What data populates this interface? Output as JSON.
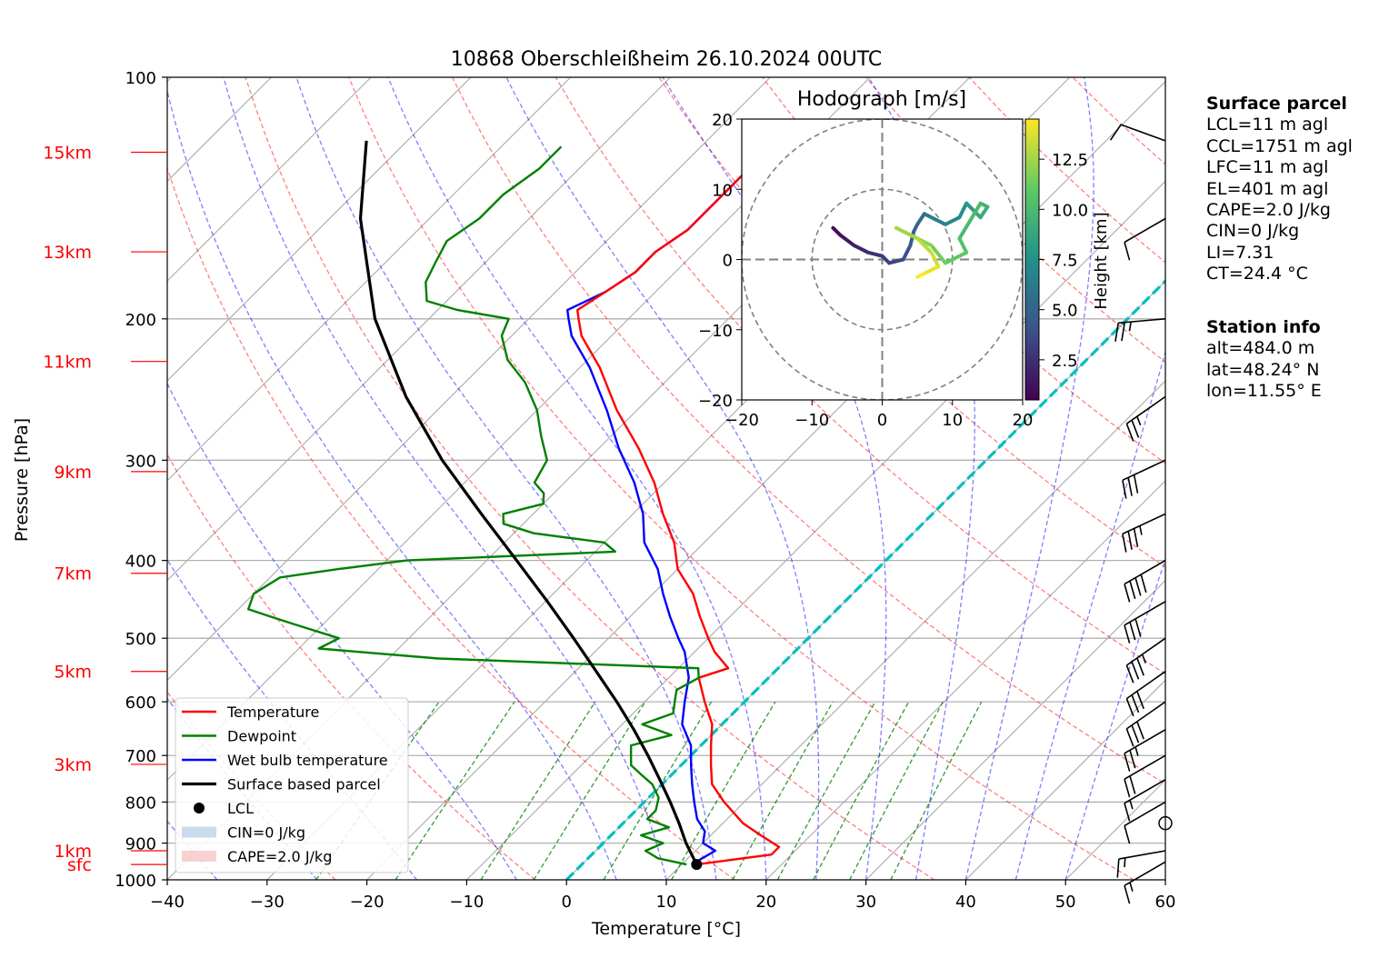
{
  "title": "10868 Oberschleißheim 26.10.2024 00UTC",
  "colors": {
    "temperature": "#ff0000",
    "dewpoint": "#008000",
    "wetbulb": "#0000ff",
    "parcel": "#000000",
    "isotherm_zero": "#00bfbf",
    "dry_adiabat": "#ff0000",
    "moist_adiabat": "#0000ff",
    "mixing_ratio": "#008000",
    "height_labels": "#ff0000"
  },
  "surface_panel": {
    "title": "Surface parcel",
    "lines": [
      "LCL=11 m agl",
      "CCL=1751 m agl",
      "LFC=11 m agl",
      "EL=401 m agl",
      "CAPE=2.0 J/kg",
      "CIN=0 J/kg",
      "LI=7.31",
      "CT=24.4 °C"
    ]
  },
  "station_panel": {
    "title": "Station info",
    "lines": [
      "alt=484.0 m",
      "lat=48.24° N",
      "lon=11.55° E"
    ]
  },
  "chart_data": [
    {
      "type": "line",
      "title": "10868 Oberschleißheim 26.10.2024 00UTC",
      "xlabel": "Temperature [°C]",
      "ylabel": "Pressure [hPa]",
      "xlim": [
        -40,
        60
      ],
      "ylim": [
        1000,
        100
      ],
      "y_scale": "log",
      "skew": "45°",
      "grid": true,
      "legend_position": "lower-left",
      "x_ticks": [
        "−40",
        "−30",
        "−20",
        "−10",
        "0",
        "10",
        "20",
        "30",
        "40",
        "50",
        "60"
      ],
      "y_ticks": [
        "1000",
        "900",
        "800",
        "700",
        "600",
        "500",
        "400",
        "300",
        "200",
        "100"
      ],
      "height_labels": [
        {
          "label": "15km",
          "p": 124
        },
        {
          "label": "13km",
          "p": 165
        },
        {
          "label": "11km",
          "p": 226
        },
        {
          "label": "9km",
          "p": 310
        },
        {
          "label": "7km",
          "p": 415
        },
        {
          "label": "5km",
          "p": 550
        },
        {
          "label": "3km",
          "p": 718
        },
        {
          "label": "1km",
          "p": 920
        },
        {
          "label": "sfc",
          "p": 957
        }
      ],
      "legend": [
        "Temperature",
        "Dewpoint",
        "Wet bulb temperature",
        "Surface based parcel",
        "LCL",
        "CIN=0 J/kg",
        "CAPE=2.0 J/kg"
      ],
      "series": [
        {
          "name": "Temperature",
          "points": [
            [
              957,
              11.5
            ],
            [
              930,
              18
            ],
            [
              910,
              18
            ],
            [
              880,
              15
            ],
            [
              850,
              12
            ],
            [
              800,
              8
            ],
            [
              760,
              5
            ],
            [
              720,
              3
            ],
            [
              680,
              1
            ],
            [
              640,
              -1
            ],
            [
              600,
              -4
            ],
            [
              560,
              -7
            ],
            [
              545,
              -5
            ],
            [
              520,
              -8
            ],
            [
              500,
              -10
            ],
            [
              470,
              -13
            ],
            [
              440,
              -16
            ],
            [
              410,
              -20
            ],
            [
              380,
              -23
            ],
            [
              350,
              -27
            ],
            [
              320,
              -31
            ],
            [
              290,
              -36
            ],
            [
              260,
              -42
            ],
            [
              230,
              -48
            ],
            [
              210,
              -53
            ],
            [
              200,
              -55
            ],
            [
              195,
              -56
            ],
            [
              185,
              -55
            ],
            [
              175,
              -54
            ],
            [
              165,
              -54
            ],
            [
              155,
              -53
            ],
            [
              145,
              -53
            ],
            [
              135,
              -53
            ],
            [
              125,
              -53
            ],
            [
              120,
              -53
            ]
          ]
        },
        {
          "name": "Dewpoint",
          "points": [
            [
              957,
              10.5
            ],
            [
              940,
              7
            ],
            [
              920,
              5
            ],
            [
              900,
              6
            ],
            [
              880,
              3
            ],
            [
              860,
              5
            ],
            [
              840,
              2
            ],
            [
              820,
              2
            ],
            [
              790,
              1
            ],
            [
              760,
              -1
            ],
            [
              740,
              -3
            ],
            [
              720,
              -5
            ],
            [
              700,
              -6
            ],
            [
              680,
              -7
            ],
            [
              660,
              -4
            ],
            [
              640,
              -8
            ],
            [
              620,
              -6
            ],
            [
              600,
              -7
            ],
            [
              580,
              -8
            ],
            [
              560,
              -7
            ],
            [
              545,
              -8
            ],
            [
              530,
              -35
            ],
            [
              515,
              -48
            ],
            [
              500,
              -47
            ],
            [
              480,
              -53
            ],
            [
              470,
              -56
            ],
            [
              460,
              -59
            ],
            [
              440,
              -60
            ],
            [
              420,
              -59
            ],
            [
              410,
              -54
            ],
            [
              400,
              -48
            ],
            [
              390,
              -28
            ],
            [
              380,
              -30
            ],
            [
              370,
              -38
            ],
            [
              360,
              -42
            ],
            [
              350,
              -43
            ],
            [
              340,
              -40
            ],
            [
              330,
              -41
            ],
            [
              320,
              -43
            ],
            [
              300,
              -44
            ],
            [
              280,
              -47
            ],
            [
              260,
              -50
            ],
            [
              240,
              -54
            ],
            [
              225,
              -58
            ],
            [
              210,
              -61
            ],
            [
              200,
              -62
            ],
            [
              195,
              -68
            ],
            [
              190,
              -72
            ],
            [
              180,
              -74
            ],
            [
              170,
              -75
            ],
            [
              160,
              -76
            ],
            [
              150,
              -75
            ],
            [
              140,
              -75
            ],
            [
              130,
              -74
            ],
            [
              122,
              -74
            ]
          ]
        },
        {
          "name": "Wet bulb temperature",
          "points": [
            [
              957,
              11
            ],
            [
              920,
              12
            ],
            [
              900,
              10
            ],
            [
              870,
              9
            ],
            [
              840,
              7
            ],
            [
              800,
              5
            ],
            [
              760,
              3
            ],
            [
              720,
              1
            ],
            [
              680,
              -1
            ],
            [
              640,
              -4
            ],
            [
              600,
              -6
            ],
            [
              560,
              -8
            ],
            [
              520,
              -11
            ],
            [
              500,
              -13
            ],
            [
              470,
              -16
            ],
            [
              440,
              -19
            ],
            [
              410,
              -22
            ],
            [
              380,
              -26
            ],
            [
              350,
              -29
            ],
            [
              320,
              -33
            ],
            [
              290,
              -38
            ],
            [
              260,
              -43
            ],
            [
              230,
              -49
            ],
            [
              210,
              -54
            ],
            [
              200,
              -56
            ],
            [
              195,
              -57
            ],
            [
              185,
              -55
            ],
            [
              175,
              -54
            ],
            [
              165,
              -54
            ],
            [
              155,
              -53
            ],
            [
              145,
              -53
            ],
            [
              135,
              -53
            ],
            [
              125,
              -53
            ],
            [
              120,
              -53
            ]
          ]
        },
        {
          "name": "Surface based parcel",
          "points": [
            [
              957,
              11.5
            ],
            [
              900,
              8.3
            ],
            [
              850,
              5.6
            ],
            [
              800,
              2.6
            ],
            [
              750,
              -0.7
            ],
            [
              700,
              -4.3
            ],
            [
              650,
              -8.3
            ],
            [
              600,
              -12.8
            ],
            [
              550,
              -17.9
            ],
            [
              500,
              -23.5
            ],
            [
              450,
              -29.8
            ],
            [
              400,
              -37.0
            ],
            [
              350,
              -45.2
            ],
            [
              300,
              -54.5
            ],
            [
              250,
              -64.5
            ],
            [
              200,
              -75.4
            ],
            [
              150,
              -86.9
            ],
            [
              120,
              -94.1
            ]
          ]
        }
      ],
      "lcl": {
        "p": 957,
        "t": 11.5
      },
      "wind_barbs": [
        {
          "p": 950,
          "direction": 240,
          "speed_kt": 15
        },
        {
          "p": 920,
          "direction": 260,
          "speed_kt": 15
        },
        {
          "p": 850,
          "direction": 0,
          "speed_kt": 0
        },
        {
          "p": 800,
          "direction": 240,
          "speed_kt": 10
        },
        {
          "p": 750,
          "direction": 240,
          "speed_kt": 15
        },
        {
          "p": 700,
          "direction": 240,
          "speed_kt": 20
        },
        {
          "p": 650,
          "direction": 240,
          "speed_kt": 25
        },
        {
          "p": 600,
          "direction": 235,
          "speed_kt": 30
        },
        {
          "p": 550,
          "direction": 235,
          "speed_kt": 30
        },
        {
          "p": 500,
          "direction": 235,
          "speed_kt": 35
        },
        {
          "p": 450,
          "direction": 240,
          "speed_kt": 30
        },
        {
          "p": 400,
          "direction": 240,
          "speed_kt": 40
        },
        {
          "p": 350,
          "direction": 245,
          "speed_kt": 35
        },
        {
          "p": 300,
          "direction": 245,
          "speed_kt": 30
        },
        {
          "p": 250,
          "direction": 235,
          "speed_kt": 25
        },
        {
          "p": 200,
          "direction": 265,
          "speed_kt": 25
        },
        {
          "p": 150,
          "direction": 240,
          "speed_kt": 10
        },
        {
          "p": 120,
          "direction": 290,
          "speed_kt": 10
        }
      ]
    },
    {
      "type": "line",
      "title": "Hodograph [m/s]",
      "xlim": [
        -20,
        20
      ],
      "ylim": [
        -20,
        20
      ],
      "x_ticks": [
        "−20",
        "−10",
        "0",
        "10",
        "20"
      ],
      "y_ticks": [
        "20",
        "10",
        "0",
        "−10",
        "−20"
      ],
      "rings": [
        10,
        20
      ],
      "colorbar": {
        "label": "Height [km]",
        "range": [
          0.5,
          14.5
        ],
        "ticks": [
          "2.5",
          "5.0",
          "7.5",
          "10.0",
          "12.5"
        ]
      },
      "points": [
        [
          -7,
          4.5,
          0.5
        ],
        [
          -6,
          3.5,
          1
        ],
        [
          -4,
          2,
          1.5
        ],
        [
          -2,
          1,
          2
        ],
        [
          0,
          0.5,
          2.5
        ],
        [
          1,
          -0.5,
          3
        ],
        [
          3,
          0,
          3.5
        ],
        [
          4,
          2,
          4
        ],
        [
          4.5,
          4,
          4.5
        ],
        [
          5,
          5,
          5
        ],
        [
          6,
          6.5,
          5.5
        ],
        [
          7,
          6,
          6
        ],
        [
          9,
          5,
          6.5
        ],
        [
          11,
          6,
          7
        ],
        [
          12,
          8,
          7.5
        ],
        [
          13,
          7,
          8
        ],
        [
          14,
          6,
          8.5
        ],
        [
          15,
          7.5,
          9
        ],
        [
          14,
          8,
          9.5
        ],
        [
          11,
          3,
          10
        ],
        [
          12,
          1,
          10.5
        ],
        [
          9,
          -0.5,
          11
        ],
        [
          7,
          2,
          11.5
        ],
        [
          2,
          4.5,
          12
        ],
        [
          5,
          3,
          12.5
        ],
        [
          7,
          1,
          13
        ],
        [
          8,
          -1,
          13.5
        ],
        [
          6,
          -2,
          14
        ],
        [
          5,
          -2.5,
          14.5
        ]
      ]
    }
  ]
}
